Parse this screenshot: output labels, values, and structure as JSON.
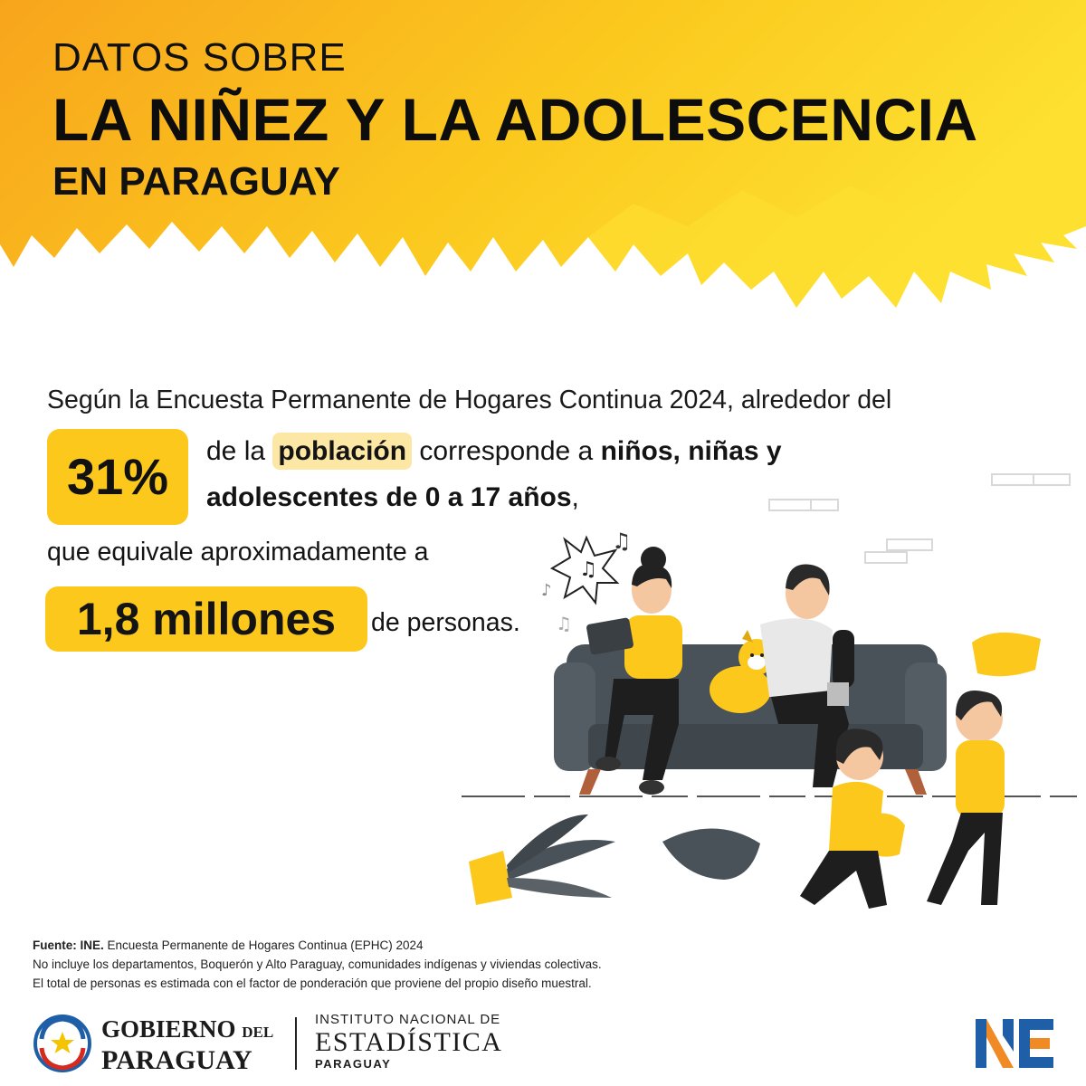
{
  "header": {
    "line1": "DATOS SOBRE",
    "line2": "LA NIÑEZ Y LA ADOLESCENCIA",
    "line3": "EN PARAGUAY"
  },
  "body": {
    "intro": "Según la Encuesta Permanente de Hogares Continua 2024, alrededor del",
    "percent": "31%",
    "line2_pre": "de la",
    "line2_highlight": "población",
    "line2_mid": "corresponde a",
    "line2_bold": "niños, niñas y",
    "line3_bold": "adolescentes de 0 a 17 años",
    "line3_end": ",",
    "line4": "que equivale aproximadamente a",
    "millions": "1,8 millones",
    "line5": "de personas."
  },
  "notes": {
    "source_label": "Fuente: INE.",
    "source_text": "Encuesta Permanente de Hogares Continua (EPHC) 2024",
    "note1": "No incluye los departamentos, Boquerón y Alto Paraguay, comunidades indígenas y viviendas colectivas.",
    "note2": "El total de personas es estimada con el factor de ponderación que proviene del propio diseño muestral."
  },
  "logos": {
    "gob_line1": "GOBIERNO",
    "gob_del": "DEL",
    "gob_line2": "PARAGUAY",
    "ine_line1": "INSTITUTO NACIONAL DE",
    "ine_line2": "ESTADÍSTICA",
    "ine_line3": "PARAGUAY"
  },
  "colors": {
    "accent_yellow": "#fcc81c",
    "banner_orange": "#f8a51c",
    "highlight_light": "#fde7a4",
    "sofa_gray": "#4a5259",
    "ine_blue": "#1f5fa8",
    "ine_orange": "#f08a24"
  }
}
